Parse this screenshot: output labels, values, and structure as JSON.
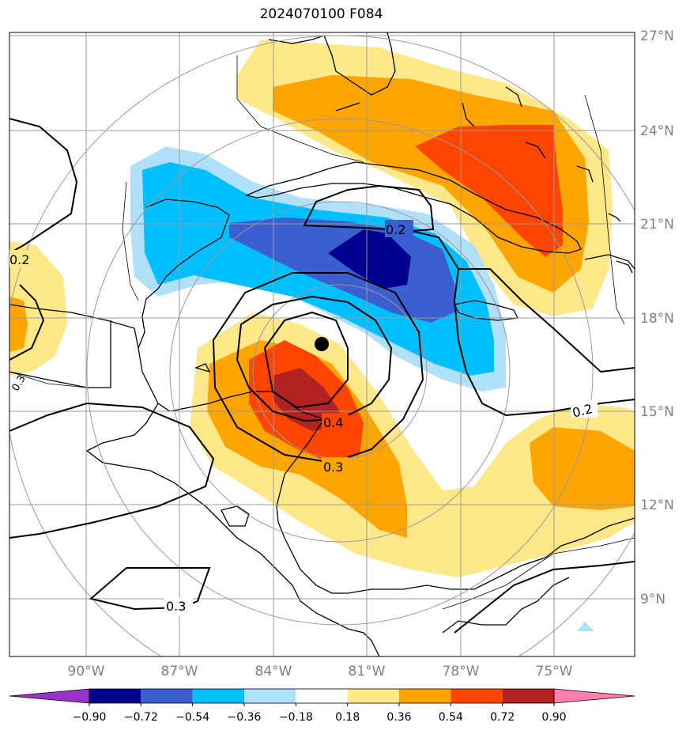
{
  "title": "2024070100 F084",
  "lat_labels": [
    "27°N",
    "24°N",
    "21°N",
    "18°N",
    "15°N",
    "12°N",
    "9°N"
  ],
  "lon_labels": [
    "90°W",
    "87°W",
    "84°W",
    "81°W",
    "78°W",
    "75°W"
  ],
  "contour_labels": [
    "0.2",
    "0.2",
    "0.2",
    "0.4",
    "0.3",
    "0.3",
    "0.3"
  ],
  "colorbar": {
    "ticks": [
      "−0.90",
      "−0.72",
      "−0.54",
      "−0.36",
      "−0.18",
      "0.18",
      "0.36",
      "0.54",
      "0.72",
      "0.90"
    ],
    "colors": [
      "#9933cc",
      "#000090",
      "#3c5fcf",
      "#00bfff",
      "#b0e0fa",
      "#ffffff",
      "#ffe88a",
      "#ffa500",
      "#ff4500",
      "#b22222",
      "#ff7fae"
    ]
  },
  "colors": {
    "land_border": "#000000",
    "grid": "#999999",
    "contour": "#000000"
  }
}
